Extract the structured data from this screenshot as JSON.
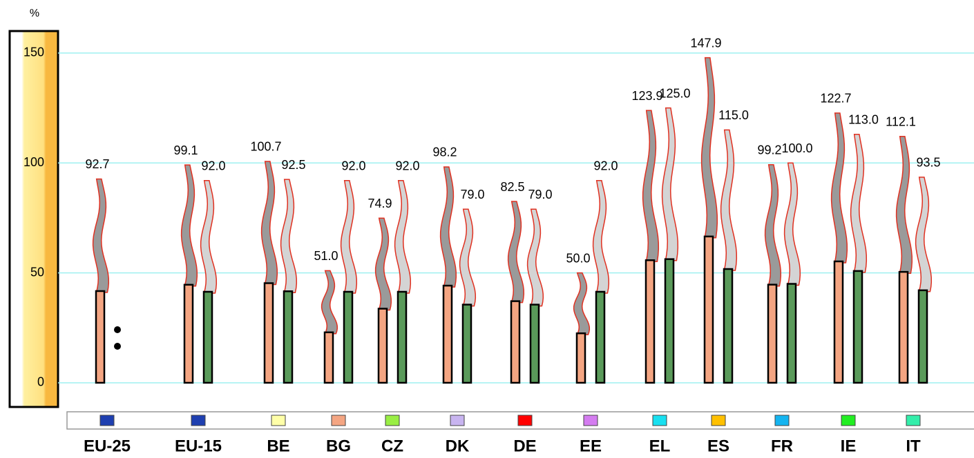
{
  "chart_data": {
    "type": "chimney",
    "y_label": "%",
    "categories": [
      "EU-25",
      "EU-15",
      "BE",
      "BG",
      "CZ",
      "DK",
      "DE",
      "EE",
      "EL",
      "ES",
      "FR",
      "IE",
      "IT"
    ],
    "category_colors": [
      "#1e3fb0",
      "#1e3fb0",
      "#ffffa8",
      "#f4a582",
      "#99ee44",
      "#c8b4f0",
      "#ff0000",
      "#d47cf0",
      "#18e0f0",
      "#ffc000",
      "#14b4f0",
      "#22ee22",
      "#33eeaa"
    ],
    "series": [
      {
        "color": "#f4a582",
        "smoke_color": "#9a9a9a",
        "values": [
          92.7,
          99.1,
          100.7,
          51.0,
          74.9,
          98.2,
          82.5,
          50.0,
          123.9,
          147.9,
          99.2,
          122.7,
          112.1
        ],
        "value_labels": [
          "92.7",
          "99.1",
          "100.7",
          "51.0",
          "74.9",
          "98.2",
          "82.5",
          "50.0",
          "123.9",
          "147.9",
          "99.2",
          "122.7",
          "112.1"
        ]
      },
      {
        "color": "#5a9a5a",
        "smoke_color": "#d4d4d4",
        "values": [
          null,
          92.0,
          92.5,
          92.0,
          92.0,
          79.0,
          79.0,
          92.0,
          125.0,
          115.0,
          100.0,
          113.0,
          93.5
        ],
        "value_labels": [
          null,
          "92.0",
          "92.5",
          "92.0",
          "92.0",
          "79.0",
          "79.0",
          "92.0",
          "125.0",
          "115.0",
          "100.0",
          "113.0",
          "93.5"
        ]
      }
    ],
    "ylim": [
      -11,
      160
    ],
    "yticks": [
      0,
      50,
      100,
      150
    ],
    "grid": true,
    "grid_color": "#9ef0f0"
  }
}
